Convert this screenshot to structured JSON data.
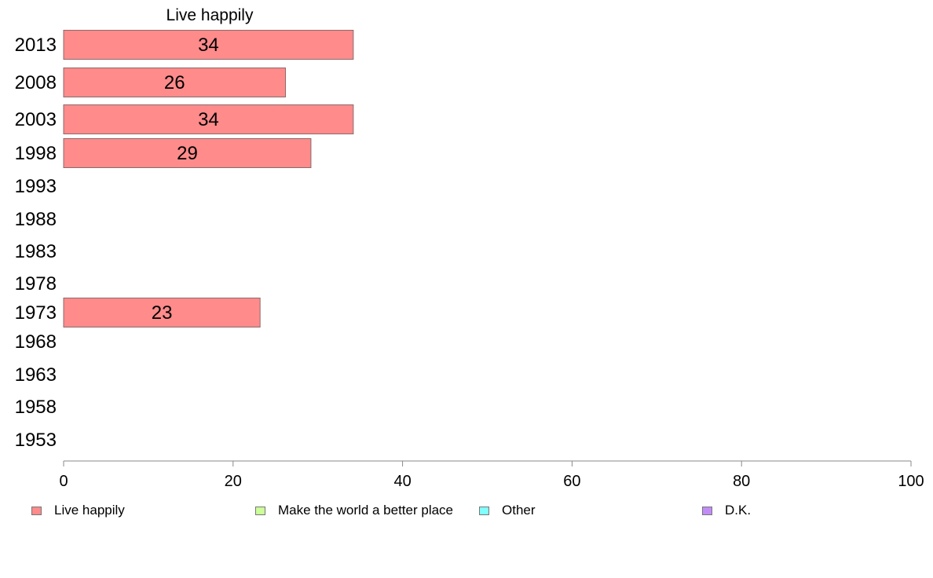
{
  "chart_data": {
    "type": "bar",
    "orientation": "horizontal",
    "title": "Live happily",
    "categories": [
      "2013",
      "2008",
      "2003",
      "1998",
      "1993",
      "1988",
      "1983",
      "1978",
      "1973",
      "1968",
      "1963",
      "1958",
      "1953"
    ],
    "series": [
      {
        "name": "Live happily",
        "color": "#ff8b8b",
        "values": [
          34,
          26,
          34,
          29,
          null,
          null,
          null,
          null,
          23,
          null,
          null,
          null,
          null
        ]
      }
    ],
    "x_ticks": [
      "0",
      "20",
      "40",
      "60",
      "80",
      "100"
    ],
    "xlim": [
      0,
      100
    ],
    "grid": false,
    "legend_position": "bottom",
    "legend": [
      {
        "label": "Live happily",
        "color": "#ff8b8b"
      },
      {
        "label": "Make the world a better place",
        "color": "#ccff99"
      },
      {
        "label": "Other",
        "color": "#80ffff"
      },
      {
        "label": "D.K.",
        "color": "#c28cf7"
      }
    ]
  }
}
